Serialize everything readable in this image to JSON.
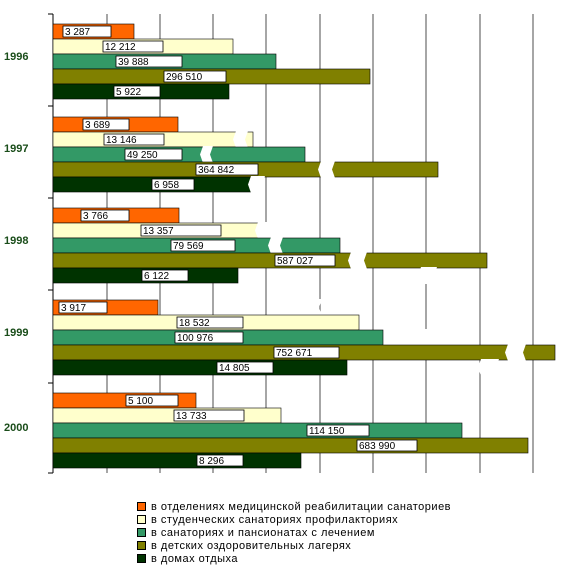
{
  "chart_data": {
    "type": "bar",
    "orientation": "horizontal",
    "categories": [
      "1996",
      "1997",
      "1998",
      "1999",
      "2000"
    ],
    "series": [
      {
        "name": "в отделениях медицинской реабилитации санаториев",
        "color": "#ff6600",
        "values": [
          3287,
          3689,
          3766,
          3917,
          5100
        ],
        "labels": [
          "3 287",
          "3 689",
          "3 766",
          "3 917",
          "5 100"
        ]
      },
      {
        "name": "в студенческих санаториях профилакториях",
        "color": "#ffffcc",
        "values": [
          12212,
          13146,
          13357,
          18532,
          13733
        ],
        "labels": [
          "12 212",
          "13 146",
          "13 357",
          "18 532",
          "13 733"
        ]
      },
      {
        "name": "в санаториях и пансионатах с лечением",
        "color": "#339966",
        "values": [
          39888,
          49250,
          79569,
          100976,
          114150
        ],
        "labels": [
          "39 888",
          "49 250",
          "79 569",
          "100 976",
          "114 150"
        ]
      },
      {
        "name": "в детских оздоровительных лагерях",
        "color": "#808000",
        "values": [
          296510,
          364842,
          587027,
          752671,
          683990
        ],
        "labels": [
          "296 510",
          "364 842",
          "587 027",
          "752 671",
          "683 990"
        ]
      },
      {
        "name": "в домах отдыха",
        "color": "#003300",
        "values": [
          5922,
          6958,
          6122,
          14805,
          8296
        ],
        "labels": [
          "5 922",
          "6 958",
          "6 122",
          "14 805",
          "8 296"
        ]
      }
    ],
    "scale": "broken axis (bar lengths not proportional)",
    "grid": true,
    "legend_position": "bottom"
  }
}
